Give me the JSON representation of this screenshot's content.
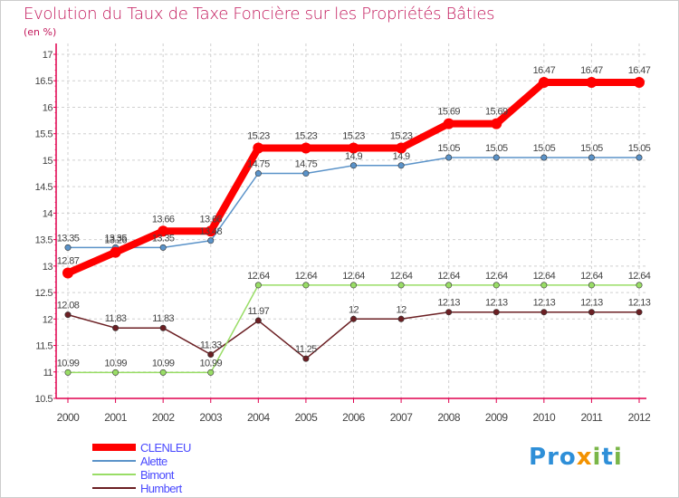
{
  "title": "Evolution du Taux de Taxe Foncière sur les Propriétés Bâties",
  "unit_label": "(en %)",
  "colors": {
    "title": "#c2185b",
    "axis": "#e0004f",
    "grid": "#d0d0d0",
    "label": "#444444",
    "legend_text": "#4a4aff"
  },
  "chart_data": {
    "type": "line",
    "title": "Evolution du Taux de Taxe Foncière sur les Propriétés Bâties",
    "ylabel": "(en %)",
    "xlabel": "",
    "ylim": [
      10.5,
      17
    ],
    "yticks": [
      "10.5",
      "11",
      "11.5",
      "12",
      "12.5",
      "13",
      "13.5",
      "14",
      "14.5",
      "15",
      "15.5",
      "16",
      "16.5",
      "17"
    ],
    "categories": [
      "2000",
      "2001",
      "2002",
      "2003",
      "2004",
      "2005",
      "2006",
      "2007",
      "2008",
      "2009",
      "2010",
      "2011",
      "2012"
    ],
    "series": [
      {
        "name": "CLENLEU",
        "color": "#ff0000",
        "values": [
          12.87,
          13.26,
          13.66,
          13.66,
          15.23,
          15.23,
          15.23,
          15.23,
          15.69,
          15.69,
          16.47,
          16.47,
          16.47
        ],
        "labels": [
          "12.87",
          "13.26",
          "13.66",
          "13.66",
          "15.23",
          "15.23",
          "15.23",
          "15.23",
          "15.69",
          "15.69",
          "16.47",
          "16.47",
          "16.47"
        ]
      },
      {
        "name": "Alette",
        "color": "#5b93c9",
        "values": [
          13.35,
          13.35,
          13.35,
          13.48,
          14.75,
          14.75,
          14.9,
          14.9,
          15.05,
          15.05,
          15.05,
          15.05,
          15.05
        ],
        "labels": [
          "13.35",
          "13.35",
          "13.35",
          "13.48",
          "14.75",
          "14.75",
          "14.9",
          "14.9",
          "15.05",
          "15.05",
          "15.05",
          "15.05",
          "15.05"
        ]
      },
      {
        "name": "Bimont",
        "color": "#99dd66",
        "values": [
          10.99,
          10.99,
          10.99,
          10.99,
          12.64,
          12.64,
          12.64,
          12.64,
          12.64,
          12.64,
          12.64,
          12.64,
          12.64
        ],
        "labels": [
          "10.99",
          "10.99",
          "10.99",
          "10.99",
          "12.64",
          "12.64",
          "12.64",
          "12.64",
          "12.64",
          "12.64",
          "12.64",
          "12.64",
          "12.64"
        ]
      },
      {
        "name": "Humbert",
        "color": "#6b1f23",
        "values": [
          12.08,
          11.83,
          11.83,
          11.33,
          11.97,
          11.25,
          12,
          12,
          12.13,
          12.13,
          12.13,
          12.13,
          12.13
        ],
        "labels": [
          "12.08",
          "11.83",
          "11.83",
          "11.33",
          "11.97",
          "11.25",
          "12",
          "12",
          "12.13",
          "12.13",
          "12.13",
          "12.13",
          "12.13"
        ]
      }
    ],
    "legend_position": "bottom-left"
  },
  "logo": {
    "letters": [
      "P",
      "r",
      "o",
      "x",
      "i",
      "t",
      "i"
    ],
    "colors": [
      "#2e8fd8",
      "#2e8fd8",
      "#2e8fd8",
      "#f39200",
      "#7ab648",
      "#2e8fd8",
      "#7ab648"
    ]
  }
}
